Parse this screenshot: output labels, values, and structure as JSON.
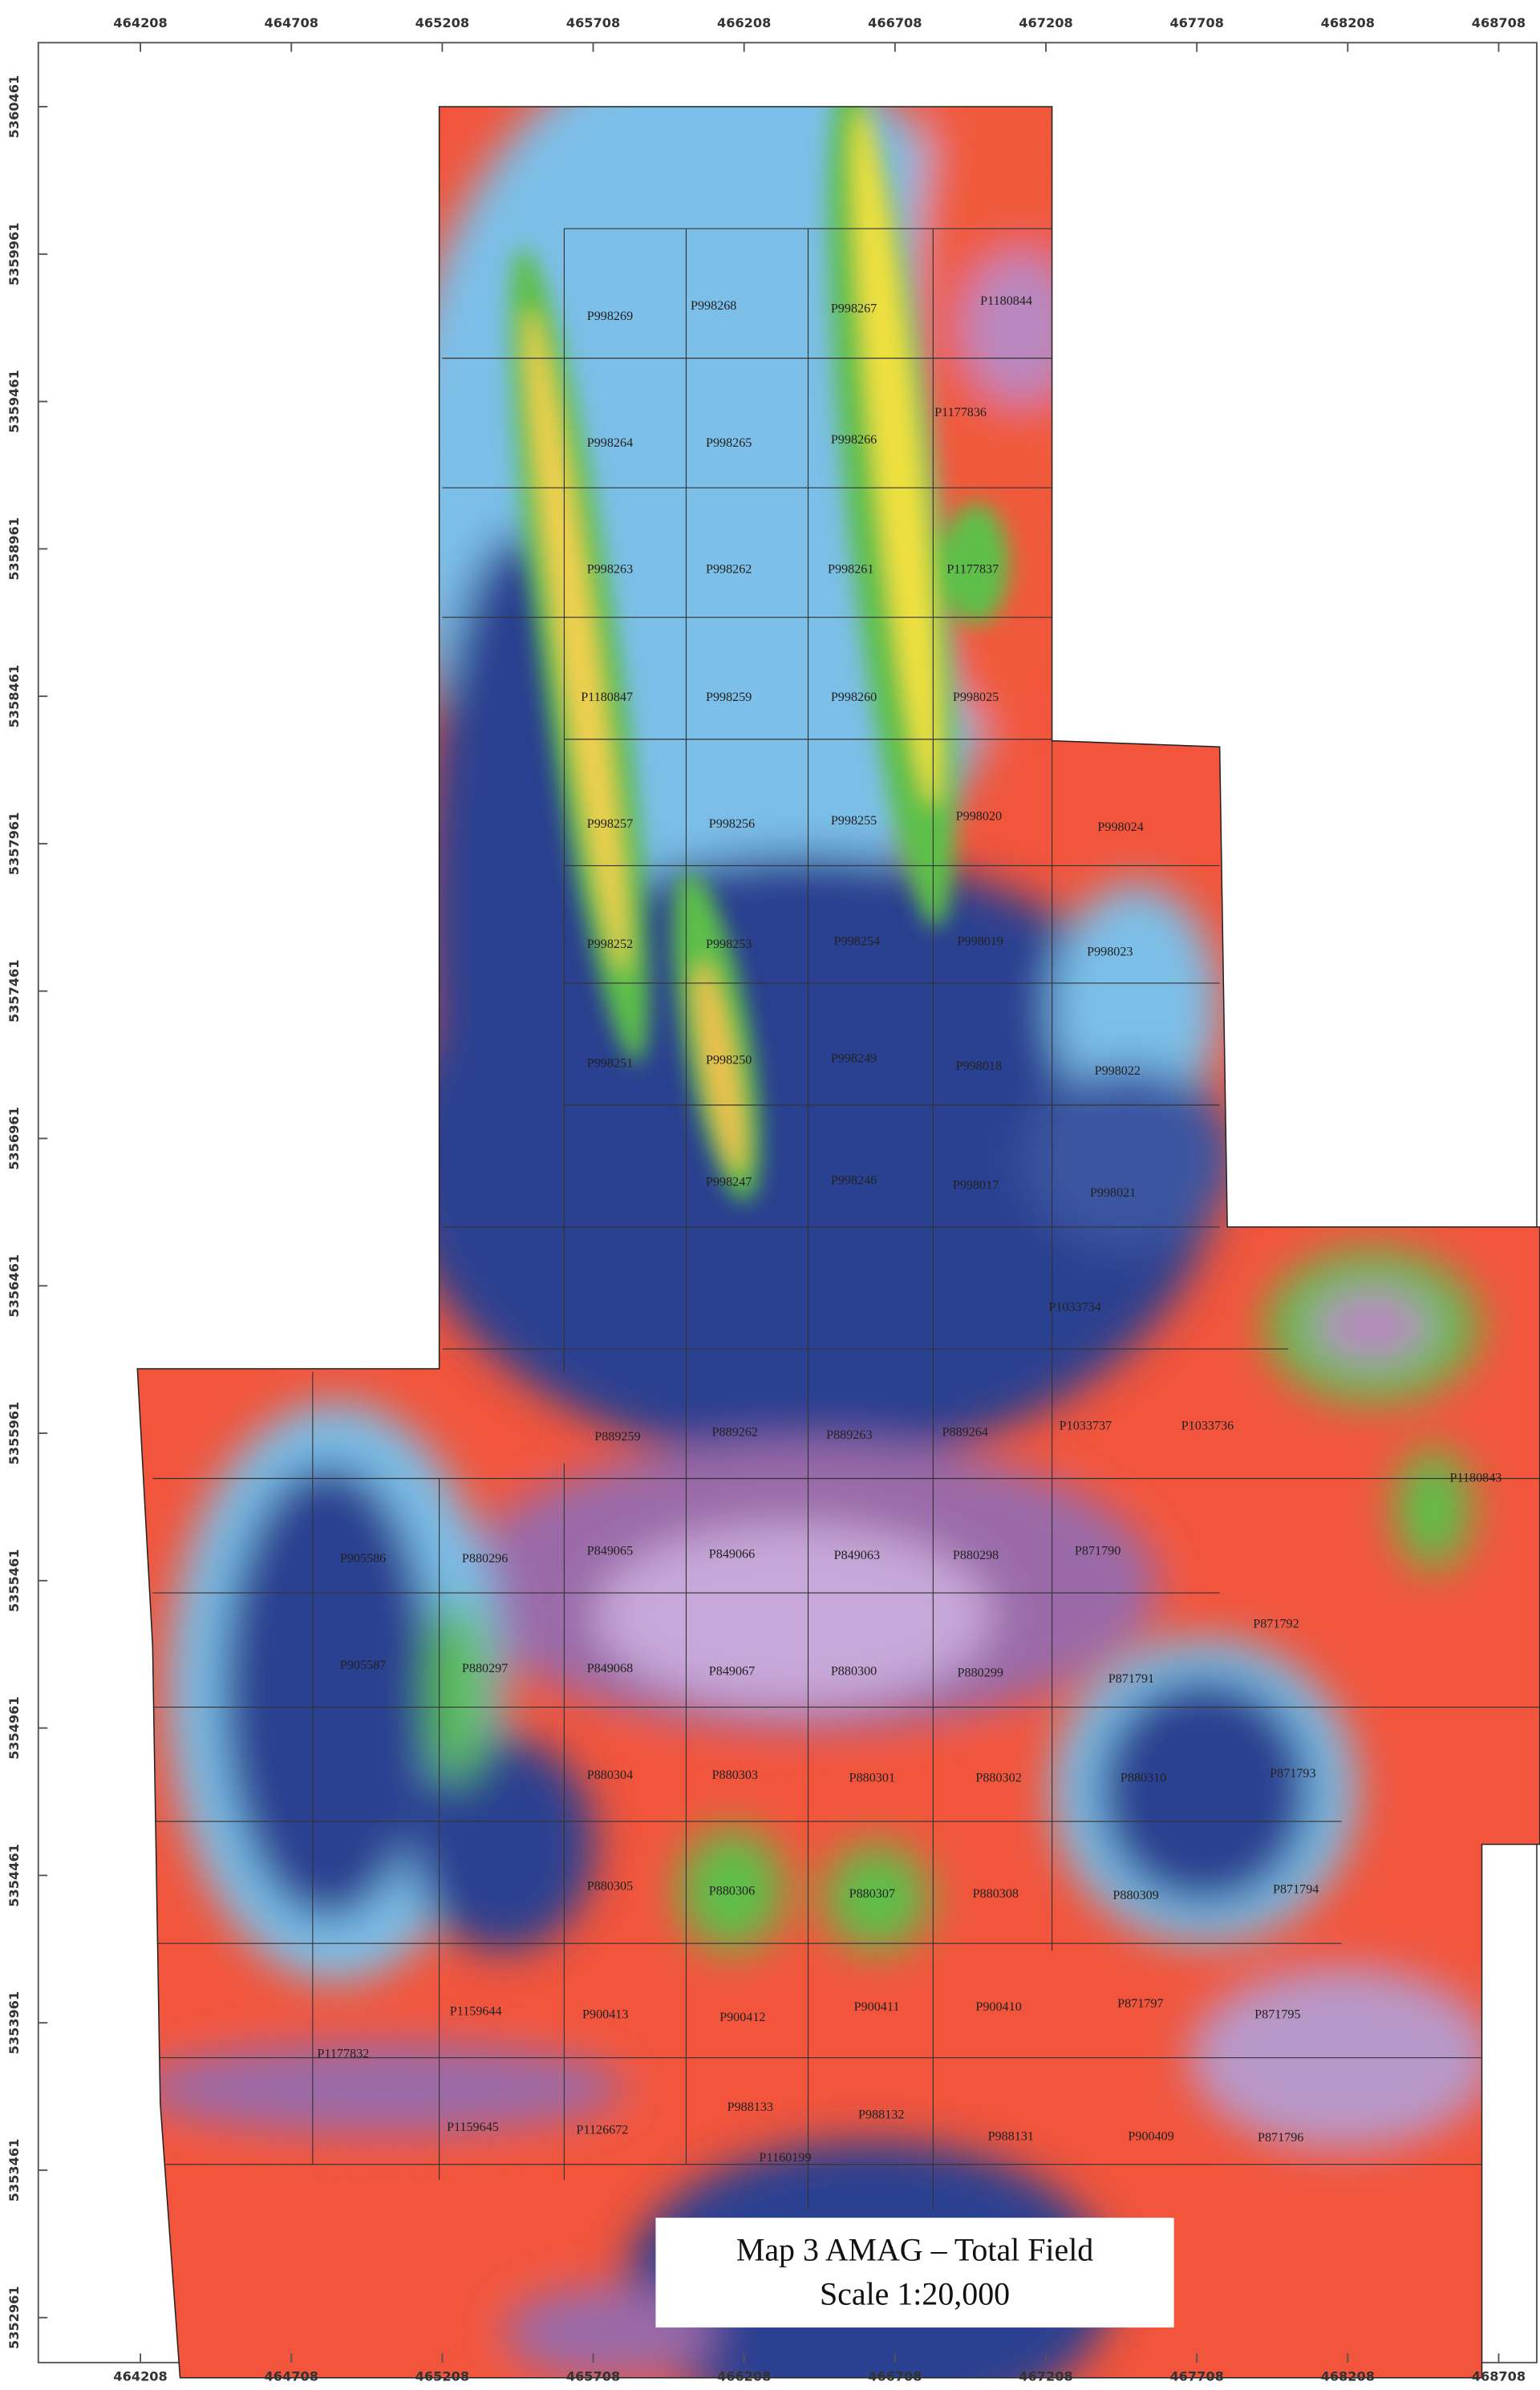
{
  "map": {
    "title": "Map 3  AMAG – Total Field",
    "scale": "Scale 1:20,000",
    "eastings": [
      464208,
      464708,
      465208,
      465708,
      466208,
      466708,
      467208,
      467708,
      468208,
      468708
    ],
    "northings": [
      5360461,
      5359961,
      5359461,
      5358961,
      5358461,
      5357961,
      5357461,
      5356961,
      5356461,
      5355961,
      5355461,
      5354961,
      5354461,
      5353961,
      5353461,
      5352961
    ],
    "claims": [
      "P998269",
      "P998268",
      "P998267",
      "P1180844",
      "P1177836",
      "P998264",
      "P998265",
      "P998266",
      "P998263",
      "P998262",
      "P998261",
      "P1177837",
      "P1180847",
      "P998259",
      "P998260",
      "P998025",
      "P998257",
      "P998256",
      "P998255",
      "P998020",
      "P998024",
      "P998252",
      "P998253",
      "P998254",
      "P998019",
      "P998023",
      "P998251",
      "P998250",
      "P998249",
      "P998018",
      "P998022",
      "P998247",
      "P998246",
      "P998017",
      "P998021",
      "P1033734",
      "P889259",
      "P889262",
      "P889263",
      "P889264",
      "P1033737",
      "P1033736",
      "P1180843",
      "P905586",
      "P880296",
      "P849065",
      "P849066",
      "P849063",
      "P880298",
      "P871790",
      "P871792",
      "P905587",
      "P880297",
      "P849068",
      "P849067",
      "P880300",
      "P880299",
      "P871791",
      "P880304",
      "P880303",
      "P880301",
      "P880302",
      "P880310",
      "P871793",
      "P880305",
      "P880306",
      "P880307",
      "P880308",
      "P880309",
      "P871794",
      "P1159644",
      "P900413",
      "P900412",
      "P900411",
      "P900410",
      "P871797",
      "P871795",
      "P1177832",
      "P1159645",
      "P1126672",
      "P988133",
      "P988132",
      "P988131",
      "P900409",
      "P871796",
      "P1160199"
    ]
  }
}
